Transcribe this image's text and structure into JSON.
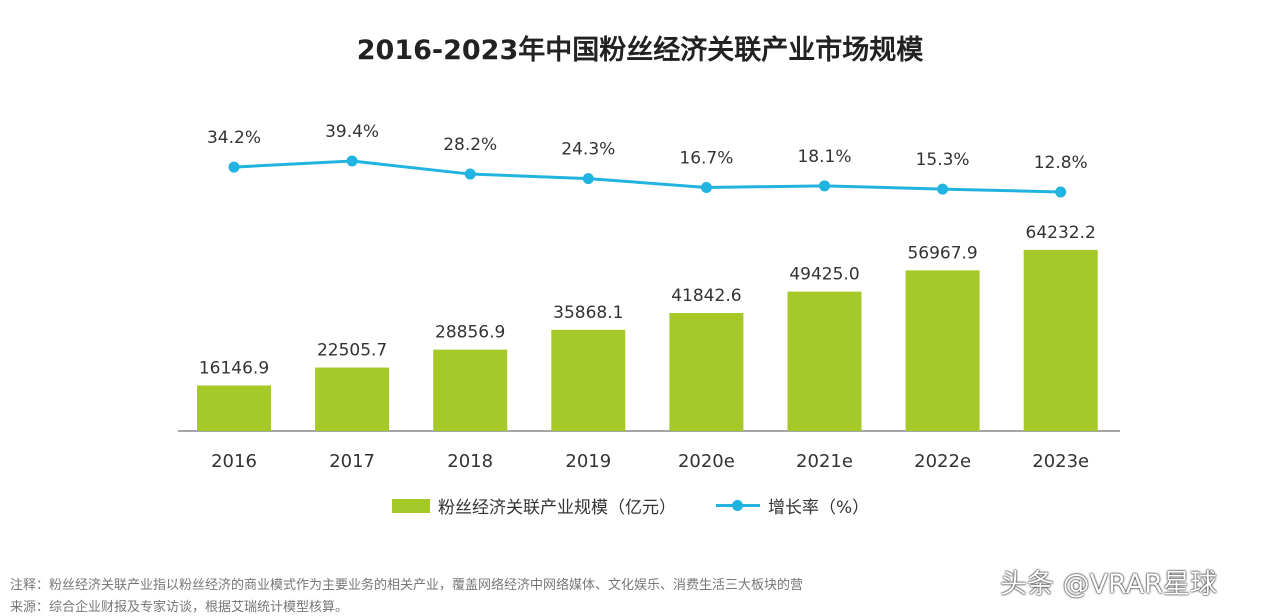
{
  "chart_data": {
    "type": "bar+line",
    "title": "2016-2023年中国粉丝经济关联产业市场规模",
    "categories": [
      "2016",
      "2017",
      "2018",
      "2019",
      "2020e",
      "2021e",
      "2022e",
      "2023e"
    ],
    "series": [
      {
        "name": "粉丝经济关联产业规模（亿元）",
        "type": "bar",
        "color": "#a6c92a",
        "values": [
          16146.9,
          22505.7,
          28856.9,
          35868.1,
          41842.6,
          49425.0,
          56967.9,
          64232.2
        ],
        "labels": [
          "16146.9",
          "22505.7",
          "28856.9",
          "35868.1",
          "41842.6",
          "49425.0",
          "56967.9",
          "64232.2"
        ]
      },
      {
        "name": "增长率（%）",
        "type": "line",
        "color": "#22b4e0",
        "values": [
          34.2,
          39.4,
          28.2,
          24.3,
          16.7,
          18.1,
          15.3,
          12.8
        ],
        "labels": [
          "34.2%",
          "39.4%",
          "28.2%",
          "24.3%",
          "16.7%",
          "18.1%",
          "15.3%",
          "12.8%"
        ]
      }
    ],
    "legend": "bottom",
    "grid": false
  },
  "notes": {
    "note": "注释：粉丝经济关联产业指以粉丝经济的商业模式作为主要业务的相关产业，覆盖网络经济中网络媒体、文化娱乐、消费生活三大板块的营",
    "source": "来源：综合企业财报及专家访谈，根据艾瑞统计模型核算。"
  },
  "watermark": "头条 @VRAR星球"
}
